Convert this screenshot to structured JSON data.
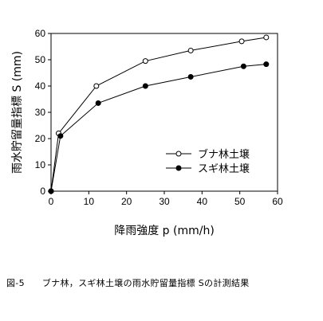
{
  "chart_data": {
    "type": "line",
    "xlabel": "降雨強度 p (mm/h)",
    "ylabel": "雨水貯留量指標 S (mm)",
    "xlim": [
      0,
      60
    ],
    "ylim": [
      0,
      60
    ],
    "xticks": [
      0,
      10,
      20,
      30,
      40,
      50,
      60
    ],
    "yticks": [
      0,
      10,
      20,
      30,
      40,
      50,
      60
    ],
    "grid": false,
    "legend_position": "bottom-right",
    "series": [
      {
        "name": "ブナ林土壌",
        "marker": "open-circle",
        "x": [
          0,
          2,
          12,
          25,
          37,
          50.5,
          57
        ],
        "y": [
          0,
          22,
          40,
          49.5,
          53.5,
          57,
          58.5
        ]
      },
      {
        "name": "スギ林土壌",
        "marker": "filled-circle",
        "x": [
          0,
          2.5,
          12.5,
          25,
          37,
          51,
          57
        ],
        "y": [
          0,
          21,
          33.5,
          40,
          43.5,
          47.5,
          48.3
        ]
      }
    ]
  },
  "caption": {
    "number": "図-5",
    "text": "ブナ林，スギ林土壌の雨水貯留量指標 Sの計測結果"
  }
}
